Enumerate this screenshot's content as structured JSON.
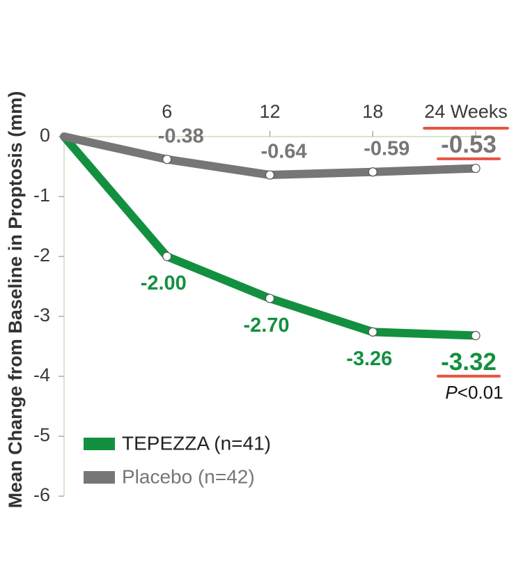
{
  "chart_data": {
    "type": "line",
    "y_label": "Mean Change from Baseline in Proptosis (mm)",
    "x": [
      0,
      6,
      12,
      18,
      24
    ],
    "series": [
      {
        "name": "TEPEZZA (n=41)",
        "color": "#13903f",
        "values": [
          0,
          -2.0,
          -2.7,
          -3.26,
          -3.32
        ],
        "value_labels": [
          null,
          "-2.00",
          "-2.70",
          "-3.26",
          "-3.32"
        ]
      },
      {
        "name": "Placebo (n=42)",
        "color": "#767676",
        "values": [
          0,
          -0.38,
          -0.64,
          -0.59,
          -0.53
        ],
        "value_labels": [
          null,
          "-0.38",
          "-0.64",
          "-0.59",
          "-0.53"
        ]
      }
    ],
    "xlim": [
      0,
      24
    ],
    "xticks": [
      6,
      12,
      18,
      {
        "value": 24,
        "label": "24 Weeks"
      }
    ],
    "ylim": [
      -6,
      0
    ],
    "yticks": [
      0,
      -1,
      -2,
      -3,
      -4,
      -5,
      -6
    ],
    "annotation": "P<0.01",
    "highlight_color": "#e8533f",
    "legend": "lower left"
  }
}
